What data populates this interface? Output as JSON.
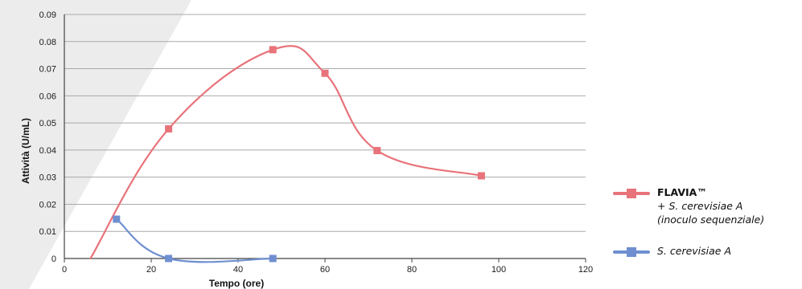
{
  "chart_data": {
    "type": "line",
    "xlabel": "Tempo (ore)",
    "ylabel": "Attività (U/mL)",
    "xlim": [
      0,
      120
    ],
    "ylim": [
      0,
      0.09
    ],
    "x_ticks": [
      "0",
      "20",
      "40",
      "60",
      "80",
      "100",
      "120"
    ],
    "y_ticks": [
      "0",
      "0.01",
      "0.02",
      "0.03",
      "0.04",
      "0.05",
      "0.06",
      "0.07",
      "0.08",
      "0.09"
    ],
    "grid": "horizontal",
    "legend_position": "right",
    "smooth": true,
    "series": [
      {
        "name": "FLAVIA™",
        "name_line2": "+ S. cerevisiae A",
        "name_line3": "(inoculo sequenziale)",
        "color": "#e8737a",
        "x": [
          6,
          24,
          48,
          60,
          72,
          96
        ],
        "y": [
          0,
          0.0478,
          0.077,
          0.0683,
          0.0398,
          0.0305
        ],
        "markers": [
          false,
          true,
          true,
          true,
          true,
          true
        ]
      },
      {
        "name": "S. cerevisiae A",
        "color": "#6f8fd0",
        "x": [
          12,
          24,
          48
        ],
        "y": [
          0.0145,
          0,
          0
        ],
        "markers": [
          true,
          true,
          true
        ]
      }
    ]
  }
}
